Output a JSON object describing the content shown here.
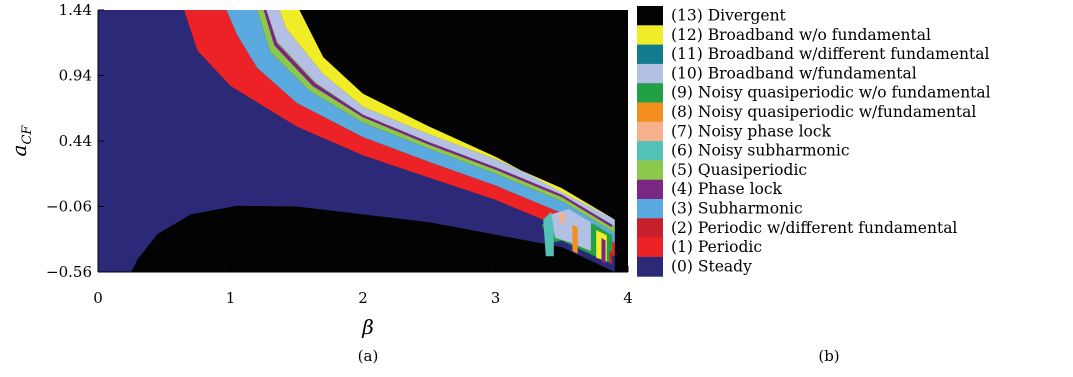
{
  "chart_data": {
    "type": "heatmap",
    "xlabel": "β",
    "ylabel_main": "a",
    "ylabel_sub": "CF",
    "xlim": [
      0,
      4
    ],
    "ylim": [
      -0.56,
      1.44
    ],
    "x_ticks": [
      "0",
      "1",
      "2",
      "3",
      "4"
    ],
    "y_ticks": [
      "1.44",
      "0.94",
      "0.44",
      "−0.06",
      "−0.56"
    ],
    "panel_labels": {
      "a": "(a)",
      "b": "(b)"
    },
    "background_color": "#030303",
    "regions": [
      {
        "category": "(0) Steady",
        "color": "#2c2a78",
        "polygon": [
          [
            0,
            -0.56
          ],
          [
            0,
            1.44
          ],
          [
            0.65,
            1.44
          ],
          [
            0.75,
            1.13
          ],
          [
            1.0,
            0.86
          ],
          [
            1.5,
            0.55
          ],
          [
            2.0,
            0.33
          ],
          [
            2.5,
            0.16
          ],
          [
            3.0,
            -0.01
          ],
          [
            3.5,
            -0.22
          ],
          [
            3.9,
            -0.44
          ],
          [
            3.9,
            -0.56
          ],
          [
            3.5,
            -0.37
          ],
          [
            2.5,
            -0.18
          ],
          [
            1.5,
            -0.06
          ],
          [
            1.05,
            -0.055
          ],
          [
            0.7,
            -0.12
          ],
          [
            0.45,
            -0.27
          ],
          [
            0.3,
            -0.46
          ],
          [
            0.25,
            -0.56
          ]
        ]
      },
      {
        "category": "(1) Periodic",
        "color": "#ec2227",
        "polygon": [
          [
            0.65,
            1.44
          ],
          [
            0.75,
            1.13
          ],
          [
            1.0,
            0.86
          ],
          [
            1.5,
            0.55
          ],
          [
            2.0,
            0.33
          ],
          [
            2.5,
            0.16
          ],
          [
            3.0,
            -0.01
          ],
          [
            3.5,
            -0.22
          ],
          [
            3.9,
            -0.44
          ],
          [
            3.9,
            -0.34
          ],
          [
            3.5,
            -0.11
          ],
          [
            3.0,
            0.1
          ],
          [
            2.5,
            0.28
          ],
          [
            2.0,
            0.47
          ],
          [
            1.5,
            0.73
          ],
          [
            1.2,
            1.0
          ],
          [
            1.05,
            1.25
          ],
          [
            0.97,
            1.44
          ]
        ]
      },
      {
        "category": "(3) Subharmonic",
        "color": "#5aaadf",
        "polygon": [
          [
            0.97,
            1.44
          ],
          [
            1.05,
            1.25
          ],
          [
            1.2,
            1.0
          ],
          [
            1.5,
            0.73
          ],
          [
            2.0,
            0.47
          ],
          [
            2.5,
            0.28
          ],
          [
            3.0,
            0.1
          ],
          [
            3.5,
            -0.11
          ],
          [
            3.9,
            -0.34
          ],
          [
            3.9,
            -0.26
          ],
          [
            3.5,
            -0.02
          ],
          [
            3.0,
            0.19
          ],
          [
            2.5,
            0.38
          ],
          [
            2.0,
            0.58
          ],
          [
            1.6,
            0.82
          ],
          [
            1.3,
            1.12
          ],
          [
            1.2,
            1.44
          ]
        ]
      },
      {
        "category": "(5) Quasiperiodic",
        "color": "#8cc84b",
        "polygon": [
          [
            1.2,
            1.44
          ],
          [
            1.3,
            1.12
          ],
          [
            1.6,
            0.82
          ],
          [
            2.0,
            0.58
          ],
          [
            2.5,
            0.38
          ],
          [
            3.0,
            0.19
          ],
          [
            3.5,
            -0.02
          ],
          [
            3.9,
            -0.26
          ],
          [
            3.9,
            -0.21
          ],
          [
            3.5,
            0.03
          ],
          [
            3.0,
            0.24
          ],
          [
            2.5,
            0.43
          ],
          [
            2.0,
            0.64
          ],
          [
            1.65,
            0.88
          ],
          [
            1.35,
            1.2
          ],
          [
            1.27,
            1.44
          ]
        ]
      },
      {
        "category": "(10) Broadband w/fundamental",
        "color": "#b3c0e3",
        "polygon": [
          [
            1.27,
            1.44
          ],
          [
            1.35,
            1.2
          ],
          [
            1.65,
            0.88
          ],
          [
            2.0,
            0.64
          ],
          [
            2.5,
            0.43
          ],
          [
            3.0,
            0.24
          ],
          [
            3.5,
            0.03
          ],
          [
            3.9,
            -0.21
          ],
          [
            3.9,
            -0.16
          ],
          [
            3.5,
            0.08
          ],
          [
            3.0,
            0.3
          ],
          [
            2.5,
            0.49
          ],
          [
            2.0,
            0.7
          ],
          [
            1.7,
            0.95
          ],
          [
            1.42,
            1.3
          ],
          [
            1.37,
            1.44
          ]
        ]
      },
      {
        "category": "(12) Broadband w/o fundamental",
        "color": "#f0ec28",
        "polygon": [
          [
            1.37,
            1.44
          ],
          [
            1.42,
            1.3
          ],
          [
            1.7,
            0.95
          ],
          [
            2.0,
            0.7
          ],
          [
            2.5,
            0.49
          ],
          [
            3.0,
            0.3
          ],
          [
            3.5,
            0.08
          ],
          [
            3.9,
            -0.16
          ],
          [
            3.75,
            -0.08
          ],
          [
            3.5,
            0.05
          ],
          [
            3.0,
            0.32
          ],
          [
            2.5,
            0.55
          ],
          [
            2.0,
            0.8
          ],
          [
            1.7,
            1.08
          ],
          [
            1.52,
            1.44
          ]
        ]
      },
      {
        "category": "(4) Phase lock",
        "color": "#7b2782",
        "polygon": [
          [
            1.25,
            1.44
          ],
          [
            1.33,
            1.17
          ],
          [
            1.62,
            0.86
          ],
          [
            2.0,
            0.62
          ],
          [
            2.5,
            0.41
          ],
          [
            3.0,
            0.22
          ],
          [
            3.5,
            0.01
          ],
          [
            3.88,
            -0.22
          ],
          [
            3.88,
            -0.2
          ],
          [
            3.5,
            0.03
          ],
          [
            3.0,
            0.24
          ],
          [
            2.5,
            0.43
          ],
          [
            2.0,
            0.64
          ],
          [
            1.64,
            0.88
          ],
          [
            1.35,
            1.19
          ],
          [
            1.27,
            1.44
          ]
        ]
      },
      {
        "category": "(9) Noisy quasiperiodic w/o fundamental",
        "color": "#22a045",
        "polygon": [
          [
            3.35,
            -0.2
          ],
          [
            3.5,
            -0.1
          ],
          [
            3.75,
            -0.2
          ],
          [
            3.88,
            -0.28
          ],
          [
            3.88,
            -0.5
          ],
          [
            3.75,
            -0.44
          ],
          [
            3.5,
            -0.32
          ],
          [
            3.4,
            -0.34
          ]
        ]
      },
      {
        "category": "(10) Broadband w/fundamental",
        "color": "#b3c0e3",
        "polygon": [
          [
            3.42,
            -0.12
          ],
          [
            3.55,
            -0.08
          ],
          [
            3.72,
            -0.18
          ],
          [
            3.72,
            -0.4
          ],
          [
            3.55,
            -0.33
          ],
          [
            3.45,
            -0.3
          ]
        ]
      },
      {
        "category": "(6) Noisy subharmonic",
        "color": "#53c1b5",
        "polygon": [
          [
            3.36,
            -0.16
          ],
          [
            3.42,
            -0.1
          ],
          [
            3.44,
            -0.24
          ],
          [
            3.44,
            -0.44
          ],
          [
            3.38,
            -0.44
          ]
        ]
      },
      {
        "category": "(8) Noisy quasiperiodic w/fundamental",
        "color": "#f38f1f",
        "polygon": [
          [
            3.58,
            -0.2
          ],
          [
            3.62,
            -0.22
          ],
          [
            3.62,
            -0.42
          ],
          [
            3.58,
            -0.4
          ]
        ]
      },
      {
        "category": "(12) Broadband w/o fundamental",
        "color": "#f0ec28",
        "polygon": [
          [
            3.76,
            -0.24
          ],
          [
            3.84,
            -0.28
          ],
          [
            3.84,
            -0.48
          ],
          [
            3.76,
            -0.45
          ]
        ]
      },
      {
        "category": "(4) Phase lock",
        "color": "#7b2782",
        "polygon": [
          [
            3.8,
            -0.3
          ],
          [
            3.83,
            -0.32
          ],
          [
            3.83,
            -0.5
          ],
          [
            3.8,
            -0.48
          ]
        ]
      },
      {
        "category": "(7) Noisy phase lock",
        "color": "#f6b08c",
        "polygon": [
          [
            3.48,
            -0.12
          ],
          [
            3.52,
            -0.1
          ],
          [
            3.52,
            -0.18
          ],
          [
            3.48,
            -0.19
          ]
        ]
      },
      {
        "category": "(2) Periodic w/different fundamental",
        "color": "#c8202b",
        "polygon": [
          [
            3.86,
            -0.4
          ],
          [
            3.88,
            -0.41
          ],
          [
            3.88,
            -0.5
          ],
          [
            3.86,
            -0.49
          ]
        ]
      }
    ],
    "legend": [
      {
        "label": "(13) Divergent",
        "color": "#030303"
      },
      {
        "label": "(12) Broadband w/o fundamental",
        "color": "#f0ec28"
      },
      {
        "label": "(11) Broadband w/different fundamental",
        "color": "#127c8e"
      },
      {
        "label": "(10) Broadband w/fundamental",
        "color": "#b3c0e3"
      },
      {
        "label": "(9) Noisy quasiperiodic w/o fundamental",
        "color": "#22a045"
      },
      {
        "label": "(8) Noisy quasiperiodic w/fundamental",
        "color": "#f38f1f"
      },
      {
        "label": "(7) Noisy phase lock",
        "color": "#f6b08c"
      },
      {
        "label": "(6) Noisy subharmonic",
        "color": "#53c1b5"
      },
      {
        "label": "(5) Quasiperiodic",
        "color": "#8cc84b"
      },
      {
        "label": "(4) Phase lock",
        "color": "#7b2782"
      },
      {
        "label": "(3) Subharmonic",
        "color": "#5aaadf"
      },
      {
        "label": "(2) Periodic w/different fundamental",
        "color": "#c8202b"
      },
      {
        "label": "(1) Periodic",
        "color": "#ec2227"
      },
      {
        "label": "(0) Steady",
        "color": "#2c2a78"
      }
    ]
  }
}
